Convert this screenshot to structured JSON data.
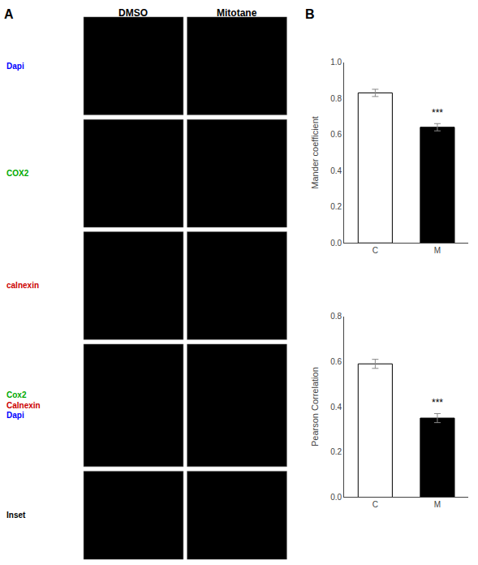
{
  "annotations": [
    {
      "text": "A"
    },
    {
      "text": "DMSO"
    },
    {
      "text": "Mitotane"
    },
    {
      "text": "Dapi",
      "color": "#0000ff"
    },
    {
      "text": "COX2",
      "color": "#00aa00"
    },
    {
      "text": "calnexin",
      "color": "#cc0000"
    },
    {
      "text": "Cox2",
      "color": "#00aa00"
    },
    {
      "text": "Calnexin",
      "color": "#cc0000"
    },
    {
      "text": "Dapi",
      "color": "#0000ff"
    },
    {
      "text": "Inset",
      "color": "#000000"
    },
    {
      "text": "B"
    }
  ],
  "chart_data": [
    {
      "type": "bar",
      "categories": [
        "C",
        "M"
      ],
      "values": [
        0.83,
        0.64
      ],
      "errors": [
        0.02,
        0.02
      ],
      "colors": [
        "#ffffff",
        "#000000"
      ],
      "ylabel": "Mander coefficient",
      "ylim": [
        0.0,
        1.0
      ],
      "yticks": [
        {
          "value": 0,
          "label": "0.0"
        },
        0.2,
        0.4,
        0.6,
        0.8,
        {
          "value": 1,
          "label": "1.0"
        }
      ],
      "grid": false,
      "annotations": [
        {
          "text": "***",
          "x": "M"
        }
      ]
    },
    {
      "type": "bar",
      "categories": [
        "C",
        "M"
      ],
      "values": [
        0.59,
        0.35
      ],
      "errors": [
        0.02,
        0.02
      ],
      "colors": [
        "#ffffff",
        "#000000"
      ],
      "ylabel": "Pearson Correlation",
      "ylim": [
        0.0,
        0.8
      ],
      "yticks": [
        {
          "value": 0,
          "label": "0.0"
        },
        0.2,
        0.4,
        0.6,
        0.8
      ],
      "grid": false,
      "annotations": [
        {
          "text": "***",
          "x": "M"
        }
      ]
    }
  ]
}
